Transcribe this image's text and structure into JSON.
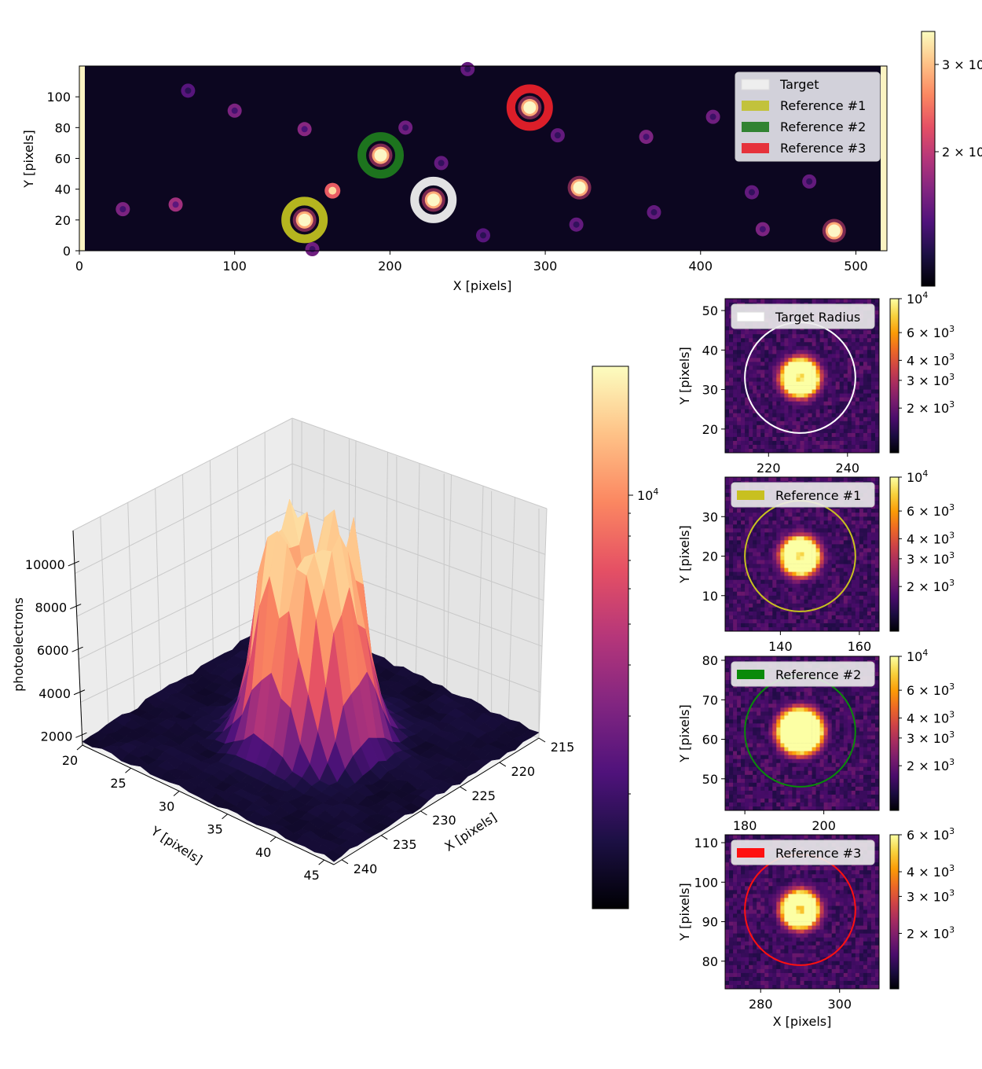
{
  "colors": {
    "magma": [
      "#000004",
      "#1c1044",
      "#4f127b",
      "#812581",
      "#b5367a",
      "#e55064",
      "#fb8761",
      "#fec287",
      "#fcfdbf"
    ],
    "inferno": [
      "#000004",
      "#1b0c41",
      "#4a0c6b",
      "#781c6d",
      "#a52c60",
      "#cf4446",
      "#ed6925",
      "#fb9b06",
      "#f7d13d",
      "#fcffa4"
    ],
    "target": "#eeeeee",
    "ref1": "#bfbf20",
    "ref2": "#1f7a1f",
    "ref3": "#e8202a"
  },
  "icons": [
    "legend-swatch-icon"
  ],
  "chart_data": [
    {
      "id": "field",
      "type": "heatmap",
      "title": "",
      "xlabel": "X [pixels]",
      "ylabel": "Y [pixels]",
      "xlim": [
        0,
        520
      ],
      "ylim": [
        0,
        120
      ],
      "xticks": [
        0,
        100,
        200,
        300,
        400,
        500
      ],
      "yticks": [
        0,
        20,
        40,
        60,
        80,
        100
      ],
      "colorbar_ticks": [
        "3 × 10",
        "2 × 10"
      ],
      "legend_position": "top-right",
      "legend": [
        {
          "label": "Target",
          "color": "#eeeeee"
        },
        {
          "label": "Reference #1",
          "color": "#bfbf20"
        },
        {
          "label": "Reference #2",
          "color": "#1f7a1f"
        },
        {
          "label": "Reference #3",
          "color": "#e8202a"
        }
      ],
      "apertures": [
        {
          "name": "Target",
          "x": 228,
          "y": 33,
          "color": "#eeeeee"
        },
        {
          "name": "Reference #1",
          "x": 145,
          "y": 20,
          "color": "#bfbf20"
        },
        {
          "name": "Reference #2",
          "x": 194,
          "y": 62,
          "color": "#1f7a1f"
        },
        {
          "name": "Reference #3",
          "x": 290,
          "y": 93,
          "color": "#e8202a"
        }
      ],
      "stars": [
        {
          "x": 228,
          "y": 33,
          "brightness": 0.85
        },
        {
          "x": 145,
          "y": 20,
          "brightness": 0.9
        },
        {
          "x": 194,
          "y": 62,
          "brightness": 1.0
        },
        {
          "x": 290,
          "y": 93,
          "brightness": 0.9
        },
        {
          "x": 322,
          "y": 41,
          "brightness": 1.0
        },
        {
          "x": 486,
          "y": 13,
          "brightness": 1.0
        },
        {
          "x": 163,
          "y": 39,
          "brightness": 0.6
        },
        {
          "x": 62,
          "y": 30,
          "brightness": 0.45
        },
        {
          "x": 28,
          "y": 27,
          "brightness": 0.3
        },
        {
          "x": 100,
          "y": 91,
          "brightness": 0.3
        },
        {
          "x": 145,
          "y": 79,
          "brightness": 0.35
        },
        {
          "x": 210,
          "y": 80,
          "brightness": 0.25
        },
        {
          "x": 233,
          "y": 57,
          "brightness": 0.2
        },
        {
          "x": 308,
          "y": 75,
          "brightness": 0.2
        },
        {
          "x": 365,
          "y": 74,
          "brightness": 0.3
        },
        {
          "x": 408,
          "y": 87,
          "brightness": 0.25
        },
        {
          "x": 433,
          "y": 38,
          "brightness": 0.2
        },
        {
          "x": 470,
          "y": 45,
          "brightness": 0.2
        },
        {
          "x": 440,
          "y": 14,
          "brightness": 0.3
        },
        {
          "x": 370,
          "y": 25,
          "brightness": 0.2
        },
        {
          "x": 320,
          "y": 17,
          "brightness": 0.2
        },
        {
          "x": 260,
          "y": 10,
          "brightness": 0.15
        },
        {
          "x": 150,
          "y": 1,
          "brightness": 0.25
        },
        {
          "x": 70,
          "y": 104,
          "brightness": 0.15
        },
        {
          "x": 250,
          "y": 118,
          "brightness": 0.2
        }
      ]
    },
    {
      "id": "surface",
      "type": "surface3d",
      "xlabel": "X [pixels]",
      "ylabel": "Y [pixels]",
      "zlabel": "photoelectrons",
      "xticks": [
        215,
        220,
        225,
        230,
        235,
        240
      ],
      "yticks": [
        20,
        25,
        30,
        35,
        40,
        45
      ],
      "zticks": [
        2000,
        4000,
        6000,
        8000,
        10000
      ],
      "colorbar_label": "10",
      "colorbar_exponent": "4",
      "zlim": [
        1500,
        11500
      ],
      "peak": 10800,
      "background": 1600,
      "center": {
        "x": 228,
        "y": 33
      }
    },
    {
      "id": "cut-target",
      "type": "heatmap",
      "legend": "Target Radius",
      "ring_color": "#ffffff",
      "xlim": [
        209,
        248
      ],
      "ylim": [
        14,
        53
      ],
      "xticks": [
        220,
        240
      ],
      "yticks": [
        20,
        30,
        40,
        50
      ],
      "ylabel": "Y [pixels]",
      "xlabel": "",
      "center": [
        228,
        33
      ],
      "radius": 14,
      "peak": 1.0,
      "ring": true,
      "colorbar_ticks": [
        {
          "base": "10",
          "exp": "4",
          "f": 0.0
        },
        {
          "base": "6 × 10",
          "exp": "3",
          "f": 0.22
        },
        {
          "base": "4 × 10",
          "exp": "3",
          "f": 0.4
        },
        {
          "base": "3 × 10",
          "exp": "3",
          "f": 0.53
        },
        {
          "base": "2 × 10",
          "exp": "3",
          "f": 0.71
        }
      ]
    },
    {
      "id": "cut-ref1",
      "type": "heatmap",
      "legend": "Reference #1",
      "ring_color": "#c8c020",
      "xlim": [
        126,
        165
      ],
      "ylim": [
        1,
        40
      ],
      "xticks": [
        140,
        160
      ],
      "yticks": [
        10,
        20,
        30
      ],
      "ylabel": "Y [pixels]",
      "xlabel": "",
      "center": [
        145,
        20
      ],
      "radius": 14,
      "peak": 1.0,
      "ring": true,
      "colorbar_ticks": [
        {
          "base": "10",
          "exp": "4",
          "f": 0.0
        },
        {
          "base": "6 × 10",
          "exp": "3",
          "f": 0.22
        },
        {
          "base": "4 × 10",
          "exp": "3",
          "f": 0.4
        },
        {
          "base": "3 × 10",
          "exp": "3",
          "f": 0.53
        },
        {
          "base": "2 × 10",
          "exp": "3",
          "f": 0.71
        }
      ]
    },
    {
      "id": "cut-ref2",
      "type": "heatmap",
      "legend": "Reference #2",
      "ring_color": "#0a8a0a",
      "xlim": [
        175,
        214
      ],
      "ylim": [
        42,
        81
      ],
      "xticks": [
        180,
        200
      ],
      "yticks": [
        50,
        60,
        70,
        80
      ],
      "ylabel": "Y [pixels]",
      "xlabel": "",
      "center": [
        194,
        62
      ],
      "radius": 14,
      "peak": 1.3,
      "ring": false,
      "colorbar_ticks": [
        {
          "base": "10",
          "exp": "4",
          "f": 0.0
        },
        {
          "base": "6 × 10",
          "exp": "3",
          "f": 0.22
        },
        {
          "base": "4 × 10",
          "exp": "3",
          "f": 0.4
        },
        {
          "base": "3 × 10",
          "exp": "3",
          "f": 0.53
        },
        {
          "base": "2 × 10",
          "exp": "3",
          "f": 0.71
        }
      ]
    },
    {
      "id": "cut-ref3",
      "type": "heatmap",
      "legend": "Reference #3",
      "ring_color": "#ff1010",
      "xlim": [
        271,
        310
      ],
      "ylim": [
        73,
        112
      ],
      "xticks": [
        280,
        300
      ],
      "yticks": [
        80,
        90,
        100,
        110
      ],
      "ylabel": "Y [pixels]",
      "xlabel": "X [pixels]",
      "center": [
        290,
        93
      ],
      "radius": 14,
      "peak": 0.95,
      "ring": true,
      "colorbar_ticks": [
        {
          "base": "6 × 10",
          "exp": "3",
          "f": 0.0
        },
        {
          "base": "4 × 10",
          "exp": "3",
          "f": 0.24
        },
        {
          "base": "3 × 10",
          "exp": "3",
          "f": 0.4
        },
        {
          "base": "2 × 10",
          "exp": "3",
          "f": 0.64
        }
      ]
    }
  ]
}
